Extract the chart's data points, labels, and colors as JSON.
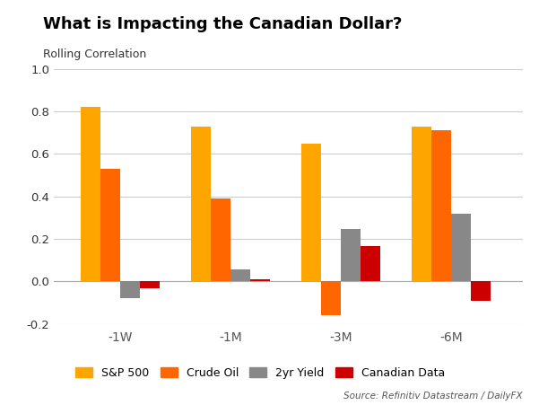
{
  "title": "What is Impacting the Canadian Dollar?",
  "subtitle": "Rolling Correlation",
  "categories": [
    "-1W",
    "-1M",
    "-3M",
    "-6M"
  ],
  "series": {
    "S&P 500": [
      0.82,
      0.73,
      0.65,
      0.73
    ],
    "Crude Oil": [
      0.53,
      0.39,
      -0.16,
      0.71
    ],
    "2yr Yield": [
      -0.08,
      0.055,
      0.245,
      0.32
    ],
    "Canadian Data": [
      -0.03,
      0.01,
      0.165,
      -0.09
    ]
  },
  "colors": {
    "S&P 500": "#FFA500",
    "Crude Oil": "#FF6600",
    "2yr Yield": "#888888",
    "Canadian Data": "#CC0000"
  },
  "ylim": [
    -0.2,
    1.0
  ],
  "yticks": [
    -0.2,
    0.0,
    0.2,
    0.4,
    0.6,
    0.8,
    1.0
  ],
  "ytick_labels": [
    "-0.2",
    "0.0",
    "0.2",
    "0.4",
    "0.6",
    "0.8",
    "1.0"
  ],
  "source": "Source: Refinitiv Datastream / DailyFX",
  "background_color": "#ffffff",
  "bar_width": 0.18
}
